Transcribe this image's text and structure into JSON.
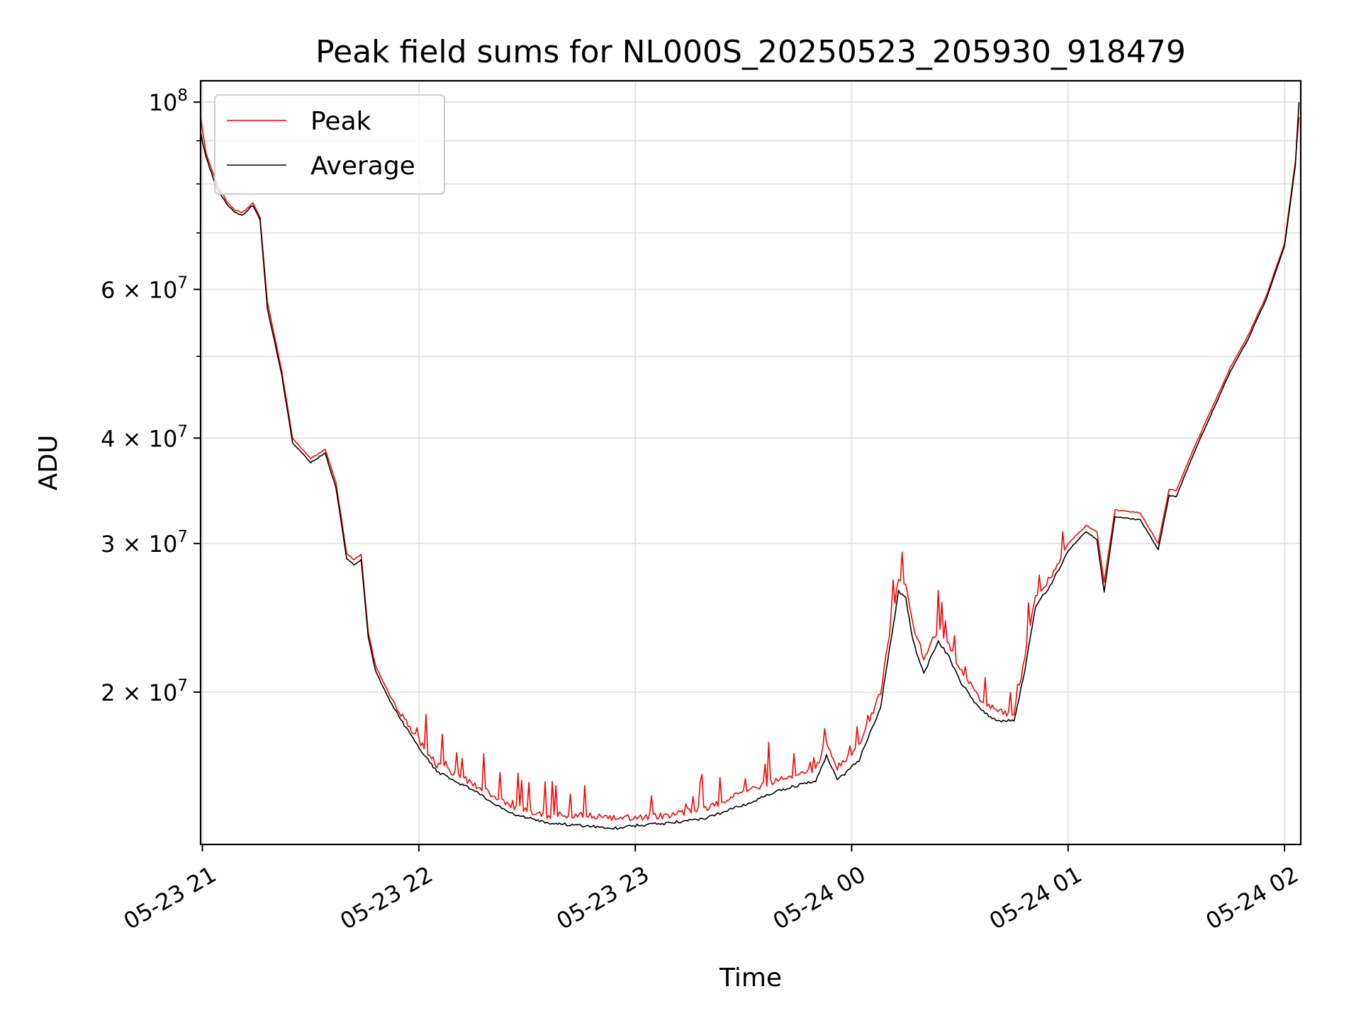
{
  "chart_data": {
    "type": "line",
    "title": "Peak field sums for NL000S_20250523_205930_918479",
    "xlabel": "Time",
    "ylabel": "ADU",
    "y_scale": "log",
    "ylim": [
      13200000,
      106000000
    ],
    "xlim": [
      "05-23 20:59:30",
      "05-24 02:04:30"
    ],
    "grid": true,
    "legend_position": "upper left",
    "x_ticks": [
      {
        "label": "05-23 21",
        "x": "05-23 21:00"
      },
      {
        "label": "05-23 22",
        "x": "05-23 22:00"
      },
      {
        "label": "05-23 23",
        "x": "05-23 23:00"
      },
      {
        "label": "05-24 00",
        "x": "05-24 00:00"
      },
      {
        "label": "05-24 01",
        "x": "05-24 01:00"
      },
      {
        "label": "05-24 02",
        "x": "05-24 02:00"
      }
    ],
    "y_ticks": [
      {
        "label_main": "10",
        "label_sup": "8",
        "value": 100000000
      },
      {
        "label_main": "6 × 10",
        "label_sup": "7",
        "value": 60000000
      },
      {
        "label_main": "4 × 10",
        "label_sup": "7",
        "value": 40000000
      },
      {
        "label_main": "3 × 10",
        "label_sup": "7",
        "value": 30000000
      },
      {
        "label_main": "2 × 10",
        "label_sup": "7",
        "value": 20000000
      }
    ],
    "y_minor_ticks": [
      90000000,
      80000000,
      70000000,
      50000000
    ],
    "colors": {
      "peak": "#ff0000",
      "average": "#000000",
      "grid": "#e5e5e5"
    },
    "series": [
      {
        "name": "Peak",
        "color": "#ff0000",
        "x": [
          "05-23 20:59:30",
          "05-23 21:01",
          "05-23 21:04",
          "05-23 21:07",
          "05-23 21:09",
          "05-23 21:11",
          "05-23 21:12",
          "05-23 21:14",
          "05-23 21:16",
          "05-23 21:18",
          "05-23 21:22",
          "05-23 21:25",
          "05-23 21:30",
          "05-23 21:34",
          "05-23 21:37",
          "05-23 21:40",
          "05-23 21:42",
          "05-23 21:44",
          "05-23 21:46",
          "05-23 21:48",
          "05-23 21:52",
          "05-23 21:58",
          "05-23 22:05",
          "05-23 22:15",
          "05-23 22:25",
          "05-23 22:35",
          "05-23 22:45",
          "05-23 22:55",
          "05-23 23:00",
          "05-23 23:10",
          "05-23 23:20",
          "05-23 23:30",
          "05-23 23:40",
          "05-23 23:50",
          "05-23 23:53",
          "05-23 23:56",
          "05-23 23:58",
          "05-24 00:02",
          "05-24 00:08",
          "05-24 00:13",
          "05-24 00:15",
          "05-24 00:17",
          "05-24 00:20",
          "05-24 00:24",
          "05-24 00:27",
          "05-24 00:30",
          "05-24 00:35",
          "05-24 00:40",
          "05-24 00:45",
          "05-24 00:48",
          "05-24 00:51",
          "05-24 00:55",
          "05-24 01:00",
          "05-24 01:05",
          "05-24 01:08",
          "05-24 01:10",
          "05-24 01:13",
          "05-24 01:15",
          "05-24 01:20",
          "05-24 01:25",
          "05-24 01:28",
          "05-24 01:30",
          "05-24 01:35",
          "05-24 01:40",
          "05-24 01:45",
          "05-24 01:50",
          "05-24 01:55",
          "05-24 02:00",
          "05-24 02:03",
          "05-24 02:04"
        ],
        "y": [
          96000000,
          87000000,
          80000000,
          76000000,
          74500000,
          74000000,
          74500000,
          76000000,
          73000000,
          58000000,
          48000000,
          40000000,
          37800000,
          38800000,
          35500000,
          29200000,
          28700000,
          29100000,
          23500000,
          21500000,
          19800000,
          18000000,
          16400000,
          15600000,
          14700000,
          14300000,
          14300000,
          14200000,
          14200000,
          14300000,
          14600000,
          15200000,
          15800000,
          16200000,
          17500000,
          16300000,
          16600000,
          17200000,
          20000000,
          27200000,
          26800000,
          24000000,
          22000000,
          23700000,
          22800000,
          21300000,
          19800000,
          19000000,
          18800000,
          22000000,
          26000000,
          27300000,
          30000000,
          31500000,
          31000000,
          27000000,
          32900000,
          32800000,
          32600000,
          30000000,
          34800000,
          34700000,
          39000000,
          43500000,
          48500000,
          53000000,
          59000000,
          68000000,
          85000000,
          96000000
        ]
      },
      {
        "name": "Average",
        "color": "#000000",
        "x": [
          "05-23 20:59:30",
          "05-23 21:01",
          "05-23 21:04",
          "05-23 21:07",
          "05-23 21:09",
          "05-23 21:11",
          "05-23 21:12",
          "05-23 21:14",
          "05-23 21:16",
          "05-23 21:18",
          "05-23 21:22",
          "05-23 21:25",
          "05-23 21:30",
          "05-23 21:34",
          "05-23 21:37",
          "05-23 21:40",
          "05-23 21:42",
          "05-23 21:44",
          "05-23 21:46",
          "05-23 21:48",
          "05-23 21:52",
          "05-23 21:58",
          "05-23 22:05",
          "05-23 22:15",
          "05-23 22:25",
          "05-23 22:35",
          "05-23 22:45",
          "05-23 22:55",
          "05-23 23:00",
          "05-23 23:10",
          "05-23 23:20",
          "05-23 23:30",
          "05-23 23:40",
          "05-23 23:50",
          "05-23 23:53",
          "05-23 23:56",
          "05-23 23:58",
          "05-24 00:02",
          "05-24 00:08",
          "05-24 00:13",
          "05-24 00:15",
          "05-24 00:17",
          "05-24 00:20",
          "05-24 00:24",
          "05-24 00:27",
          "05-24 00:30",
          "05-24 00:35",
          "05-24 00:40",
          "05-24 00:45",
          "05-24 00:48",
          "05-24 00:51",
          "05-24 00:55",
          "05-24 01:00",
          "05-24 01:05",
          "05-24 01:08",
          "05-24 01:10",
          "05-24 01:13",
          "05-24 01:15",
          "05-24 01:20",
          "05-24 01:25",
          "05-24 01:28",
          "05-24 01:30",
          "05-24 01:35",
          "05-24 01:40",
          "05-24 01:45",
          "05-24 01:50",
          "05-24 01:55",
          "05-24 02:00",
          "05-24 02:03",
          "05-24 02:04"
        ],
        "y": [
          92000000,
          86000000,
          79000000,
          75500000,
          74000000,
          73500000,
          74000000,
          75500000,
          72500000,
          57000000,
          47500000,
          39500000,
          37400000,
          38400000,
          35000000,
          28800000,
          28300000,
          28700000,
          23200000,
          21200000,
          19500000,
          17700000,
          16100000,
          15300000,
          14400000,
          14000000,
          13900000,
          13800000,
          13900000,
          14000000,
          14200000,
          14700000,
          15300000,
          15700000,
          16800000,
          15800000,
          16000000,
          16600000,
          19200000,
          26300000,
          25800000,
          23000000,
          21000000,
          23000000,
          22000000,
          20600000,
          19200000,
          18500000,
          18500000,
          21200000,
          25300000,
          26700000,
          29400000,
          31000000,
          30300000,
          26300000,
          32300000,
          32200000,
          32000000,
          29500000,
          34200000,
          34100000,
          38500000,
          43000000,
          48000000,
          52500000,
          58500000,
          67500000,
          84000000,
          100000000
        ]
      }
    ]
  }
}
